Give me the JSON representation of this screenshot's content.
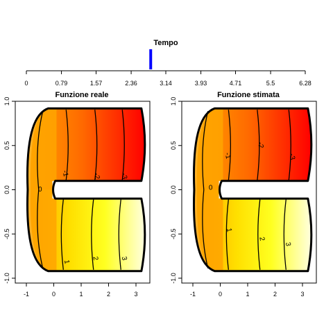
{
  "chart_data": [
    {
      "type": "slider",
      "title": "Tempo",
      "xlim": [
        0,
        6.28
      ],
      "tick_labels": [
        "0",
        "0.79",
        "1.57",
        "2.36",
        "3.14",
        "3.93",
        "4.71",
        "5.5",
        "6.28"
      ],
      "tick_values": [
        0,
        0.79,
        1.57,
        2.36,
        3.14,
        3.93,
        4.71,
        5.5,
        6.28
      ],
      "value": 2.8,
      "marker_color": "#0000ff"
    },
    {
      "type": "heatmap",
      "title": "Funzione reale",
      "xlim": [
        -1,
        3.5
      ],
      "ylim": [
        -1,
        1
      ],
      "x_tick_labels": [
        "-1",
        "0",
        "1",
        "2",
        "3"
      ],
      "x_tick_values": [
        -1,
        0,
        1,
        2,
        3
      ],
      "y_tick_labels": [
        "-1.0",
        "-0.5",
        "0.0",
        "0.5",
        "1.0"
      ],
      "y_tick_values": [
        -1,
        -0.5,
        0,
        0.5,
        1
      ],
      "contours": [
        {
          "level": "-3",
          "x": 2.5,
          "lx": 2.5,
          "ly": 0.15
        },
        {
          "level": "-2",
          "x": 1.5,
          "lx": 1.5,
          "ly": 0.15
        },
        {
          "level": "-1",
          "x": 0.45,
          "lx": 0.35,
          "ly": 0.18
        },
        {
          "level": "0",
          "x": -0.55,
          "lx": -0.5,
          "ly": -0.02
        },
        {
          "level": "1",
          "x": 0.35,
          "lx": 0.4,
          "ly": -0.82
        },
        {
          "level": "2",
          "x": 1.45,
          "lx": 1.45,
          "ly": -0.78
        },
        {
          "level": "3",
          "x": 2.45,
          "lx": 2.5,
          "ly": -0.78
        }
      ],
      "colorscale": [
        "#ff0000",
        "#ff8000",
        "#ffa500",
        "#ffff00",
        "#ffffe0"
      ]
    },
    {
      "type": "heatmap",
      "title": "Funzione stimata",
      "xlim": [
        -1,
        3.5
      ],
      "ylim": [
        -1,
        1
      ],
      "x_tick_labels": [
        "-1",
        "0",
        "1",
        "2",
        "3"
      ],
      "x_tick_values": [
        -1,
        0,
        1,
        2,
        3
      ],
      "y_tick_labels": [
        "-1.0",
        "-0.5",
        "0.0",
        "0.5",
        "1.0"
      ],
      "y_tick_values": [
        -1,
        -0.5,
        0,
        0.5,
        1
      ],
      "contours": [
        {
          "level": "-3",
          "x": 2.5,
          "lx": 2.55,
          "ly": 0.37
        },
        {
          "level": "-2",
          "x": 1.35,
          "lx": 1.4,
          "ly": 0.5
        },
        {
          "level": "-1",
          "x": 0.3,
          "lx": 0.2,
          "ly": 0.38
        },
        {
          "level": "0",
          "x": -0.6,
          "lx": -0.35,
          "ly": 0.0
        },
        {
          "level": "1",
          "x": 0.3,
          "lx": 0.25,
          "ly": -0.46
        },
        {
          "level": "2",
          "x": 1.45,
          "lx": 1.45,
          "ly": -0.56
        },
        {
          "level": "3",
          "x": 2.4,
          "lx": 2.4,
          "ly": -0.62
        }
      ],
      "colorscale": [
        "#ff0000",
        "#ff8000",
        "#ffa500",
        "#ffff00",
        "#ffffe0"
      ]
    }
  ]
}
